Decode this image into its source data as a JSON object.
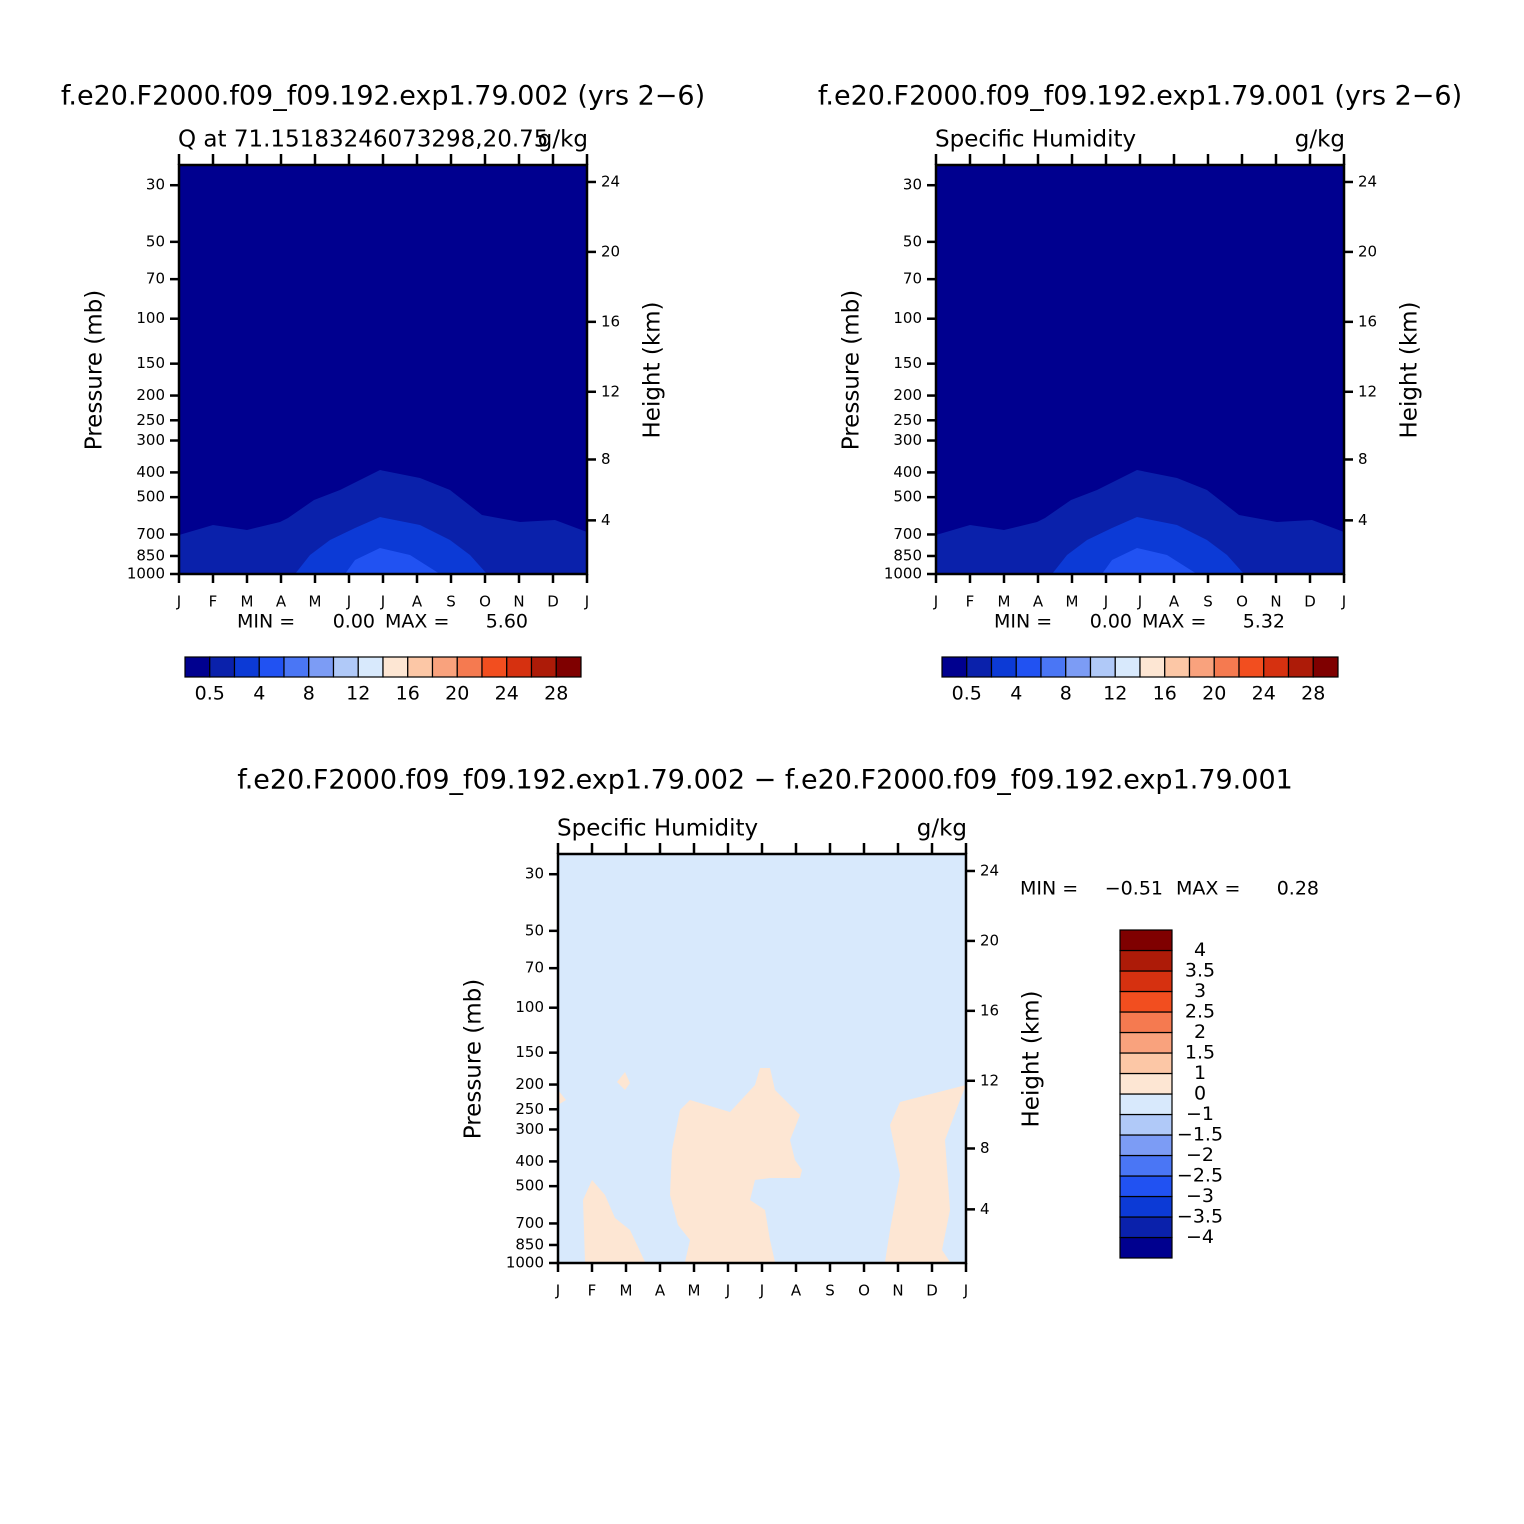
{
  "chart_data": [
    {
      "type": "contour",
      "title": "f.e20.F2000.f09_f09.192.exp1.79.002 (yrs 2−6)",
      "left_subtitle": "Q at 71.15183246073298,20.75",
      "right_subtitle": "g/kg",
      "y_label": "Pressure (mb)",
      "y2_label": "Height (km)",
      "categories": [
        "J",
        "F",
        "M",
        "A",
        "M",
        "J",
        "J",
        "A",
        "S",
        "O",
        "N",
        "D",
        "J"
      ],
      "ylim": [
        1000,
        25
      ],
      "log_y": true,
      "yticks": [
        30,
        50,
        70,
        100,
        150,
        200,
        250,
        300,
        400,
        500,
        700,
        850,
        1000
      ],
      "y2ticks": [
        4,
        8,
        12,
        16,
        20,
        24
      ],
      "stats": [
        "MIN =",
        "0.00",
        "MAX =",
        "5.60"
      ],
      "colorbar": {
        "orientation": "horizontal",
        "ticks": [
          0.5,
          4,
          8,
          12,
          16,
          20,
          24,
          28
        ],
        "colors": [
          "#00008f",
          "#0a21ab",
          "#0c3ad6",
          "#2152f2",
          "#4a76f5",
          "#7c9cf5",
          "#b0c9f8",
          "#d8e9fc",
          "#fde6d3",
          "#fcc7a6",
          "#f9a27d",
          "#f57a50",
          "#f24e1f",
          "#d63110",
          "#ad1b08",
          "#7f0000"
        ]
      }
    },
    {
      "type": "contour",
      "title": "f.e20.F2000.f09_f09.192.exp1.79.001 (yrs 2−6)",
      "left_subtitle": "Specific Humidity",
      "right_subtitle": "g/kg",
      "y_label": "Pressure (mb)",
      "y2_label": "Height (km)",
      "categories": [
        "J",
        "F",
        "M",
        "A",
        "M",
        "J",
        "J",
        "A",
        "S",
        "O",
        "N",
        "D",
        "J"
      ],
      "ylim": [
        1000,
        25
      ],
      "log_y": true,
      "yticks": [
        30,
        50,
        70,
        100,
        150,
        200,
        250,
        300,
        400,
        500,
        700,
        850,
        1000
      ],
      "y2ticks": [
        4,
        8,
        12,
        16,
        20,
        24
      ],
      "stats": [
        "MIN =",
        "0.00",
        "MAX =",
        "5.32"
      ],
      "colorbar": {
        "orientation": "horizontal",
        "ticks": [
          0.5,
          4,
          8,
          12,
          16,
          20,
          24,
          28
        ],
        "colors": [
          "#00008f",
          "#0a21ab",
          "#0c3ad6",
          "#2152f2",
          "#4a76f5",
          "#7c9cf5",
          "#b0c9f8",
          "#d8e9fc",
          "#fde6d3",
          "#fcc7a6",
          "#f9a27d",
          "#f57a50",
          "#f24e1f",
          "#d63110",
          "#ad1b08",
          "#7f0000"
        ]
      }
    },
    {
      "type": "contour",
      "title": "f.e20.F2000.f09_f09.192.exp1.79.002 − f.e20.F2000.f09_f09.192.exp1.79.001",
      "left_subtitle": "Specific Humidity",
      "right_subtitle": "g/kg",
      "y_label": "Pressure (mb)",
      "y2_label": "Height (km)",
      "categories": [
        "J",
        "F",
        "M",
        "A",
        "M",
        "J",
        "J",
        "A",
        "S",
        "O",
        "N",
        "D",
        "J"
      ],
      "ylim": [
        1000,
        25
      ],
      "log_y": true,
      "yticks": [
        30,
        50,
        70,
        100,
        150,
        200,
        250,
        300,
        400,
        500,
        700,
        850,
        1000
      ],
      "y2ticks": [
        4,
        8,
        12,
        16,
        20,
        24
      ],
      "stats": [
        "MIN =",
        "−0.51",
        "MAX =",
        "0.28"
      ],
      "colorbar": {
        "orientation": "vertical",
        "ticks": [
          {
            "value": -4,
            "label": "−4"
          },
          {
            "value": -3.5,
            "label": "−3.5"
          },
          {
            "value": -3,
            "label": "−3"
          },
          {
            "value": -2.5,
            "label": "−2.5"
          },
          {
            "value": -2,
            "label": "−2"
          },
          {
            "value": -1.5,
            "label": "−1.5"
          },
          {
            "value": -1,
            "label": "−1"
          },
          0,
          1,
          1.5,
          2,
          2.5,
          3,
          3.5,
          4
        ],
        "colors": [
          "#00008f",
          "#0a21ab",
          "#0c3ad6",
          "#2152f2",
          "#4a76f5",
          "#7c9cf5",
          "#b0c9f8",
          "#d8e9fc",
          "#fde6d3",
          "#fcc7a6",
          "#f9a27d",
          "#f57a50",
          "#f24e1f",
          "#d63110",
          "#ad1b08",
          "#7f0000"
        ]
      }
    }
  ]
}
